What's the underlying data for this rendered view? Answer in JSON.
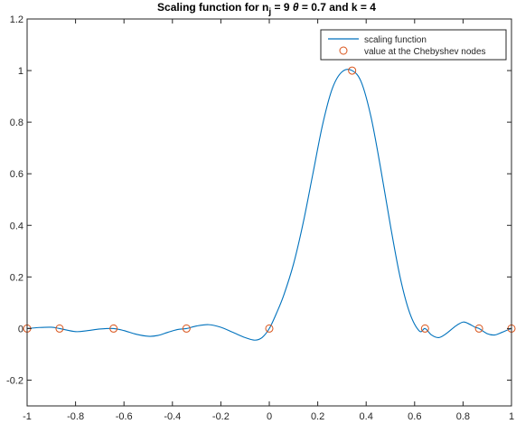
{
  "chart_data": {
    "type": "line",
    "title": {
      "prefix": "Scaling function for n",
      "subscript": "j",
      "mid": " = 9  ",
      "theta_symbol": "θ",
      "suffix": " =  0.7  and k = 4"
    },
    "xlabel": "",
    "ylabel": "",
    "xlim": [
      -1,
      1
    ],
    "ylim": [
      -0.3,
      1.2
    ],
    "xticks": [
      -1,
      -0.8,
      -0.6,
      -0.4,
      -0.2,
      0,
      0.2,
      0.4,
      0.6,
      0.8,
      1
    ],
    "xtick_labels": [
      "-1",
      "-0.8",
      "-0.6",
      "-0.4",
      "-0.2",
      "0",
      "0.2",
      "0.4",
      "0.6",
      "0.8",
      "1"
    ],
    "yticks": [
      -0.2,
      0,
      0.2,
      0.4,
      0.6,
      0.8,
      1,
      1.2
    ],
    "ytick_labels": [
      "-0.2",
      "0",
      "0.2",
      "0.4",
      "0.6",
      "0.8",
      "1",
      "1.2"
    ],
    "grid": false,
    "legend_position": "top-right",
    "series": [
      {
        "name": "scaling function",
        "style": "line",
        "color": "#0072BD",
        "x": [
          -1,
          -0.95,
          -0.9,
          -0.866,
          -0.8,
          -0.75,
          -0.7,
          -0.643,
          -0.6,
          -0.55,
          -0.5,
          -0.46,
          -0.42,
          -0.38,
          -0.342,
          -0.3,
          -0.25,
          -0.2,
          -0.15,
          -0.1,
          -0.06,
          -0.03,
          0,
          0.03,
          0.06,
          0.1,
          0.14,
          0.18,
          0.22,
          0.26,
          0.3,
          0.342,
          0.38,
          0.42,
          0.46,
          0.5,
          0.54,
          0.58,
          0.62,
          0.643,
          0.67,
          0.7,
          0.73,
          0.77,
          0.8,
          0.82,
          0.85,
          0.866,
          0.9,
          0.93,
          0.96,
          0.985,
          1
        ],
        "y": [
          0,
          0.004,
          0.005,
          0,
          -0.012,
          -0.008,
          -0.002,
          0,
          -0.008,
          -0.022,
          -0.03,
          -0.027,
          -0.015,
          -0.004,
          0,
          0.01,
          0.015,
          0.005,
          -0.015,
          -0.035,
          -0.045,
          -0.035,
          0,
          0.06,
          0.13,
          0.25,
          0.41,
          0.6,
          0.79,
          0.93,
          0.995,
          1.0,
          0.955,
          0.82,
          0.62,
          0.4,
          0.2,
          0.06,
          -0.01,
          0,
          -0.025,
          -0.035,
          -0.02,
          0.01,
          0.025,
          0.02,
          0.005,
          0,
          -0.02,
          -0.025,
          -0.015,
          -0.005,
          0
        ]
      },
      {
        "name": "value at the Chebyshev nodes",
        "style": "markers",
        "marker": "circle",
        "color": "#D95319",
        "x": [
          -1,
          -0.866,
          -0.643,
          -0.342,
          0,
          0.342,
          0.643,
          0.866,
          1
        ],
        "y": [
          0,
          0,
          0,
          0,
          0,
          1,
          0,
          0,
          0
        ]
      }
    ]
  }
}
